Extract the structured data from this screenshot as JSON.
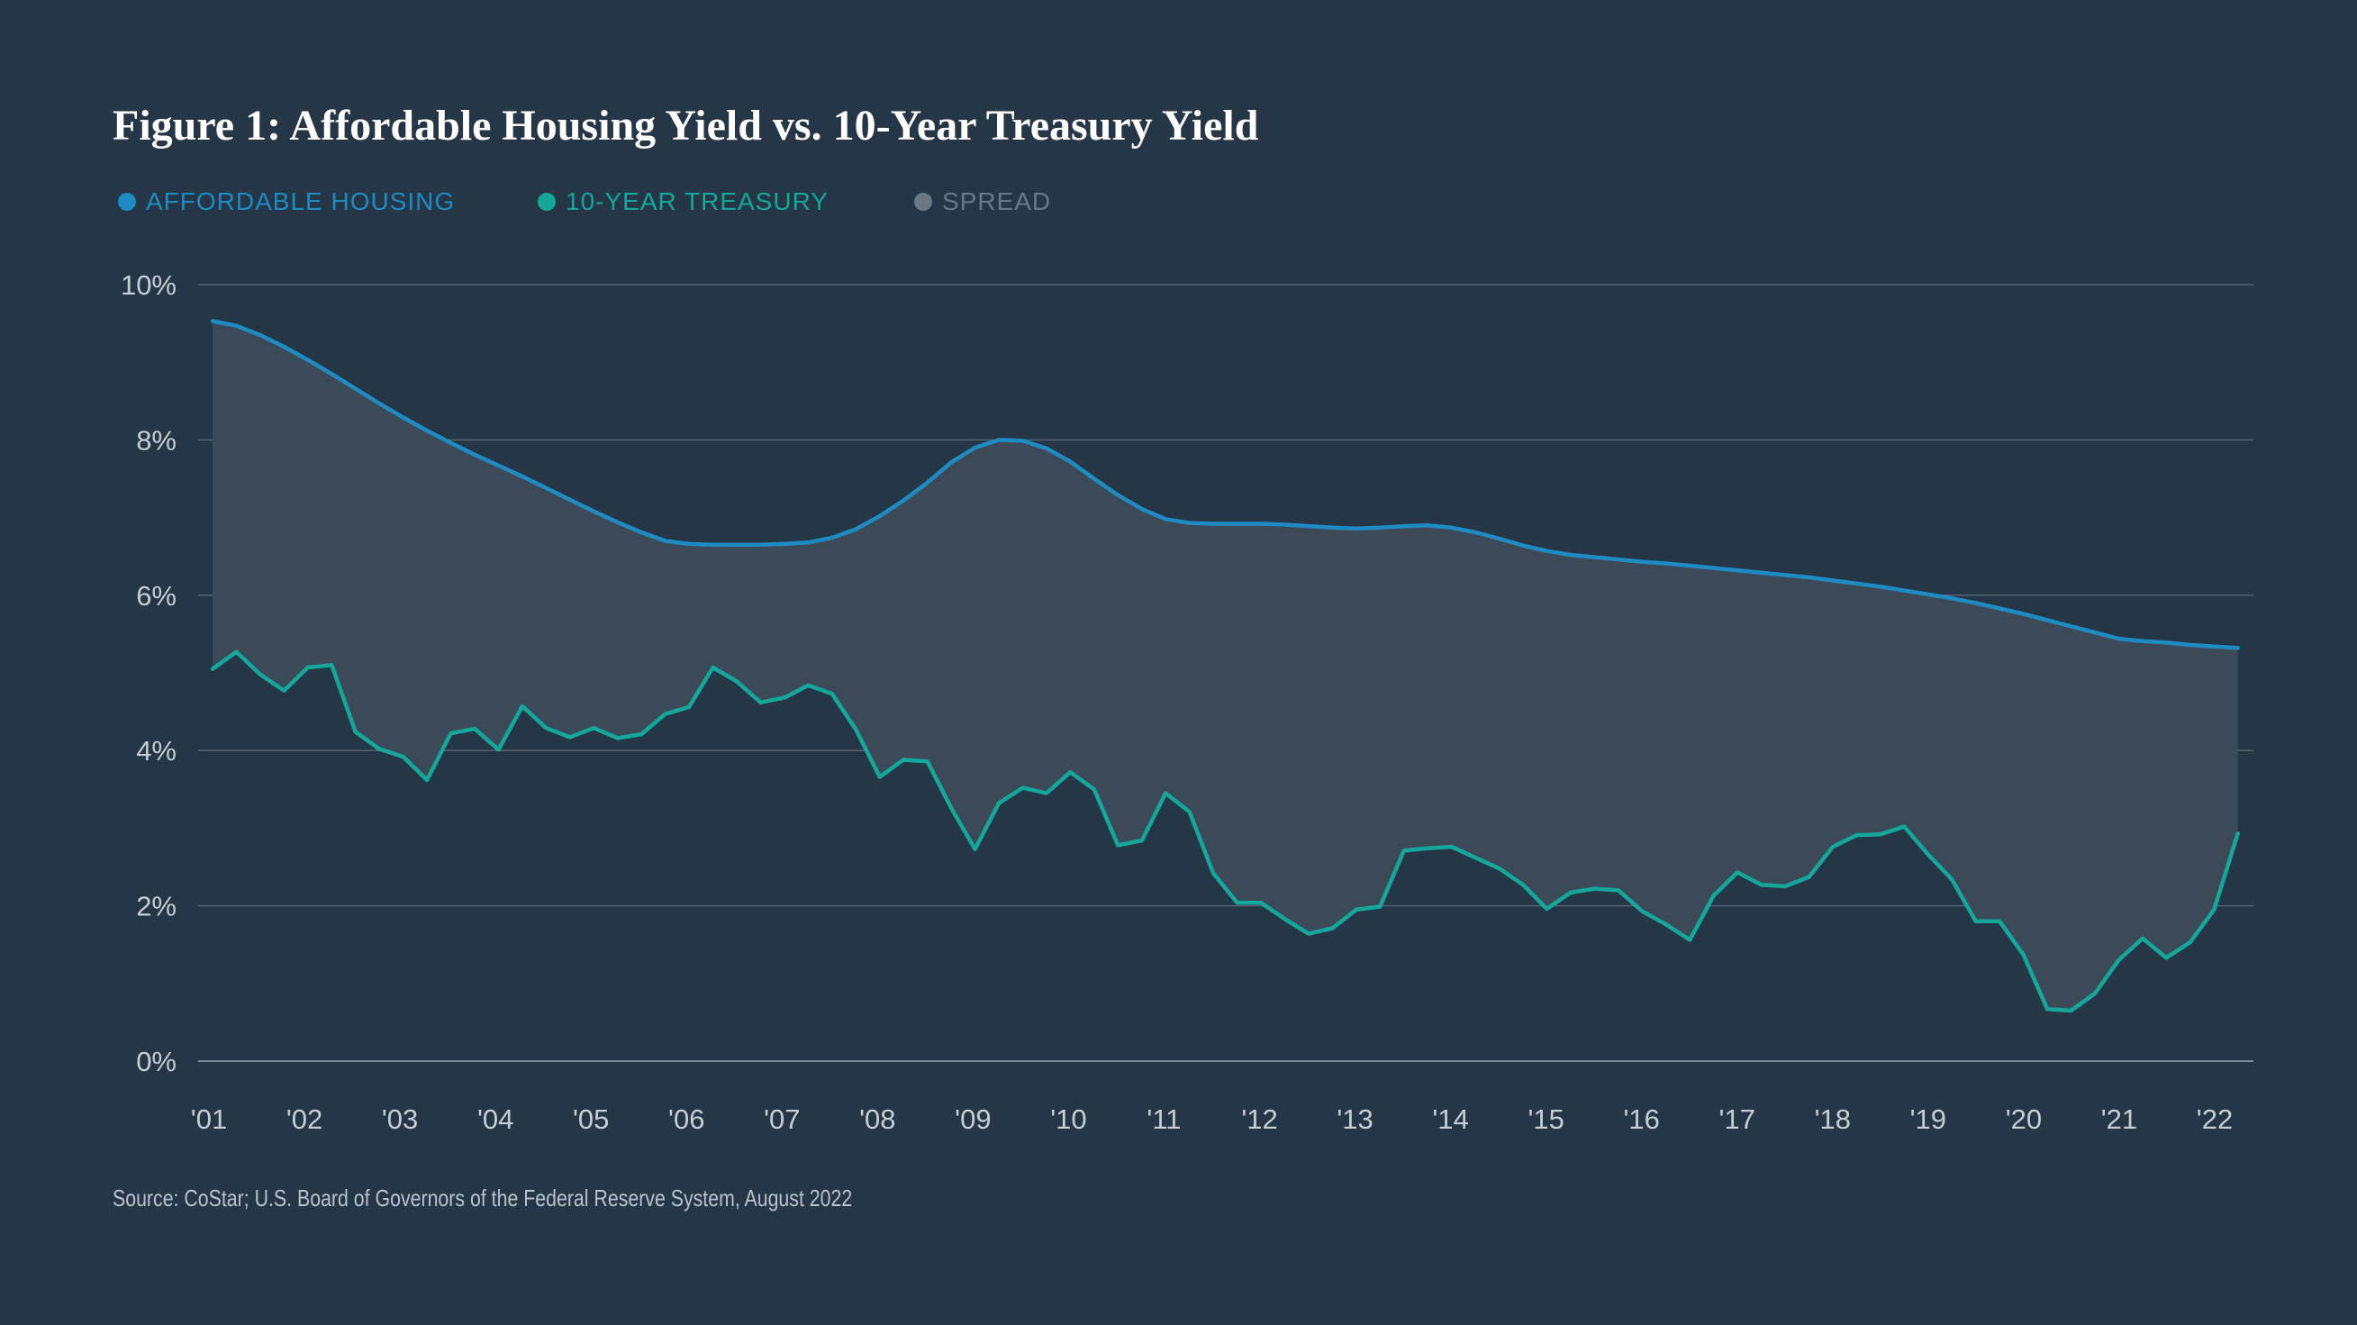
{
  "chart_data": {
    "type": "area",
    "title": "Figure 1: Affordable Housing Yield vs. 10-Year Treasury Yield",
    "source": "Source: CoStar; U.S. Board of Governors of the Federal Reserve System, August 2022",
    "legend": [
      {
        "key": "housing",
        "label": "AFFORDABLE HOUSING",
        "color": "#1E8BC3"
      },
      {
        "key": "treasury",
        "label": "10-YEAR TREASURY",
        "color": "#13A89A"
      },
      {
        "key": "spread",
        "label": "SPREAD",
        "color": "#6B7885"
      }
    ],
    "legend_position": "top-left",
    "y_ticks": [
      "0%",
      "2%",
      "4%",
      "6%",
      "8%",
      "10%"
    ],
    "ylim": [
      0,
      10
    ],
    "x_ticks": [
      "'01",
      "'02",
      "'03",
      "'04",
      "'05",
      "'06",
      "'07",
      "'08",
      "'09",
      "'10",
      "'11",
      "'12",
      "'13",
      "'14",
      "'15",
      "'16",
      "'17",
      "'18",
      "'19",
      "'20",
      "'21",
      "'22"
    ],
    "xlim": [
      2001,
      2022.3
    ],
    "grid": true,
    "series": [
      {
        "name": "AFFORDABLE HOUSING",
        "x": [
          2001.0,
          2001.25,
          2001.5,
          2001.75,
          2002.0,
          2002.25,
          2002.5,
          2002.75,
          2003.0,
          2003.25,
          2003.5,
          2003.75,
          2004.0,
          2004.25,
          2004.5,
          2004.75,
          2005.0,
          2005.25,
          2005.5,
          2005.75,
          2006.0,
          2006.25,
          2006.5,
          2006.75,
          2007.0,
          2007.25,
          2007.5,
          2007.75,
          2008.0,
          2008.25,
          2008.5,
          2008.75,
          2009.0,
          2009.25,
          2009.5,
          2009.75,
          2010.0,
          2010.25,
          2010.5,
          2010.75,
          2011.0,
          2011.25,
          2011.5,
          2011.75,
          2012.0,
          2012.25,
          2012.5,
          2012.75,
          2013.0,
          2013.25,
          2013.5,
          2013.75,
          2014.0,
          2014.25,
          2014.5,
          2014.75,
          2015.0,
          2015.25,
          2015.5,
          2015.75,
          2016.0,
          2016.25,
          2016.5,
          2016.75,
          2017.0,
          2017.25,
          2017.5,
          2017.75,
          2018.0,
          2018.25,
          2018.5,
          2018.75,
          2019.0,
          2019.25,
          2019.5,
          2019.75,
          2020.0,
          2020.25,
          2020.5,
          2020.75,
          2021.0,
          2021.25,
          2021.5,
          2021.75,
          2022.0,
          2022.25
        ],
        "values": [
          9.53,
          9.47,
          9.35,
          9.2,
          9.03,
          8.85,
          8.66,
          8.47,
          8.29,
          8.12,
          7.96,
          7.81,
          7.67,
          7.53,
          7.38,
          7.23,
          7.08,
          6.94,
          6.81,
          6.7,
          6.66,
          6.65,
          6.65,
          6.65,
          6.66,
          6.68,
          6.74,
          6.85,
          7.02,
          7.22,
          7.45,
          7.71,
          7.9,
          8.0,
          7.99,
          7.89,
          7.72,
          7.5,
          7.29,
          7.11,
          6.98,
          6.93,
          6.92,
          6.92,
          6.92,
          6.91,
          6.89,
          6.87,
          6.86,
          6.87,
          6.89,
          6.9,
          6.87,
          6.81,
          6.73,
          6.64,
          6.57,
          6.52,
          6.49,
          6.46,
          6.43,
          6.41,
          6.38,
          6.35,
          6.32,
          6.29,
          6.26,
          6.23,
          6.19,
          6.15,
          6.11,
          6.06,
          6.01,
          5.96,
          5.9,
          5.83,
          5.76,
          5.68,
          5.6,
          5.52,
          5.44,
          5.41,
          5.39,
          5.36,
          5.34,
          5.32
        ]
      },
      {
        "name": "10-YEAR TREASURY",
        "x": [
          2001.0,
          2001.25,
          2001.5,
          2001.75,
          2002.0,
          2002.25,
          2002.5,
          2002.75,
          2003.0,
          2003.25,
          2003.5,
          2003.75,
          2004.0,
          2004.25,
          2004.5,
          2004.75,
          2005.0,
          2005.25,
          2005.5,
          2005.75,
          2006.0,
          2006.25,
          2006.5,
          2006.75,
          2007.0,
          2007.25,
          2007.5,
          2007.75,
          2008.0,
          2008.25,
          2008.5,
          2008.75,
          2009.0,
          2009.25,
          2009.5,
          2009.75,
          2010.0,
          2010.25,
          2010.5,
          2010.75,
          2011.0,
          2011.25,
          2011.5,
          2011.75,
          2012.0,
          2012.25,
          2012.5,
          2012.75,
          2013.0,
          2013.25,
          2013.5,
          2013.75,
          2014.0,
          2014.25,
          2014.5,
          2014.75,
          2015.0,
          2015.25,
          2015.5,
          2015.75,
          2016.0,
          2016.25,
          2016.5,
          2016.75,
          2017.0,
          2017.25,
          2017.5,
          2017.75,
          2018.0,
          2018.25,
          2018.5,
          2018.75,
          2019.0,
          2019.25,
          2019.5,
          2019.75,
          2020.0,
          2020.25,
          2020.5,
          2020.75,
          2021.0,
          2021.25,
          2021.5,
          2021.75,
          2022.0,
          2022.25
        ],
        "values": [
          5.05,
          5.27,
          4.98,
          4.77,
          5.07,
          5.1,
          4.24,
          4.02,
          3.92,
          3.62,
          4.22,
          4.28,
          4.01,
          4.57,
          4.29,
          4.17,
          4.29,
          4.16,
          4.21,
          4.47,
          4.56,
          5.07,
          4.89,
          4.62,
          4.68,
          4.84,
          4.73,
          4.27,
          3.66,
          3.88,
          3.86,
          3.26,
          2.73,
          3.32,
          3.52,
          3.45,
          3.72,
          3.5,
          2.78,
          2.84,
          3.45,
          3.21,
          2.42,
          2.04,
          2.04,
          1.83,
          1.64,
          1.71,
          1.95,
          1.99,
          2.71,
          2.74,
          2.76,
          2.62,
          2.48,
          2.27,
          1.96,
          2.17,
          2.22,
          2.2,
          1.93,
          1.76,
          1.56,
          2.13,
          2.43,
          2.27,
          2.25,
          2.37,
          2.76,
          2.91,
          2.92,
          3.02,
          2.66,
          2.34,
          1.8,
          1.8,
          1.37,
          0.67,
          0.65,
          0.87,
          1.3,
          1.58,
          1.33,
          1.53,
          1.95,
          2.93
        ]
      }
    ]
  }
}
